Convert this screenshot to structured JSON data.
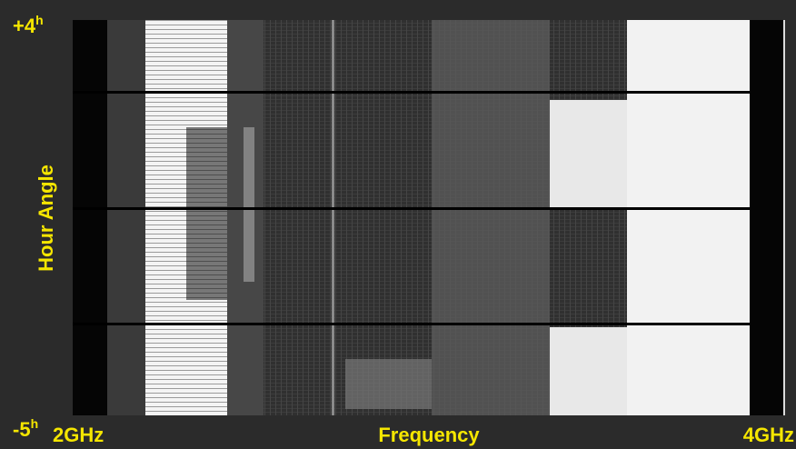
{
  "axes": {
    "y_title": "Hour Angle",
    "x_title": "Frequency",
    "y_top": {
      "text": "+4",
      "sup": "h"
    },
    "y_bottom": {
      "text": "-5",
      "sup": "h"
    },
    "x_left": "2GHz",
    "x_right": "4GHz"
  }
}
